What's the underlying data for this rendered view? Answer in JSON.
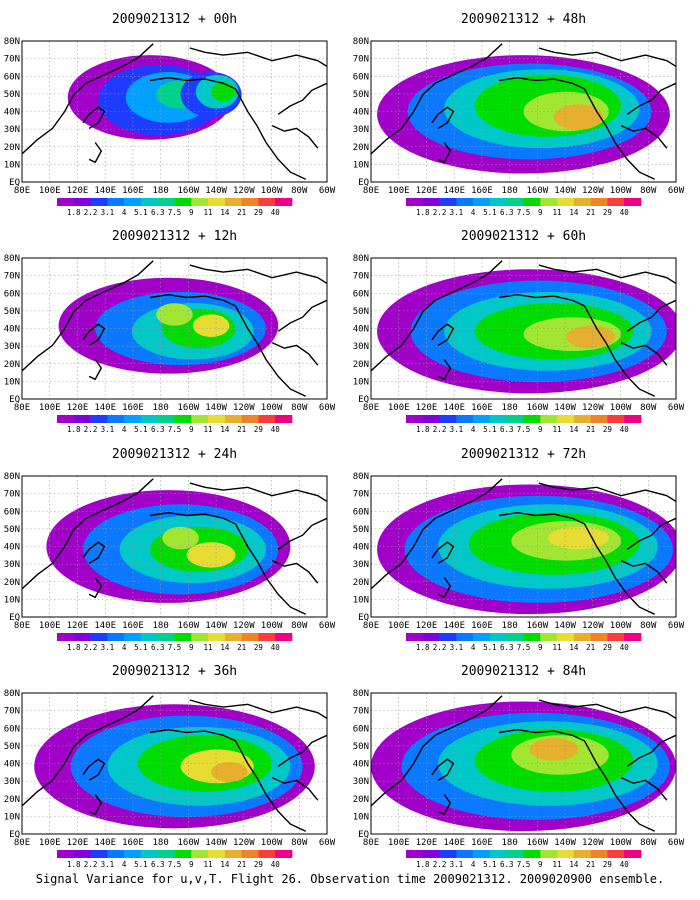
{
  "colorbar": {
    "labels": [
      "1.8",
      "2.2",
      "3.1",
      "4",
      "5.1",
      "6.3",
      "7.5",
      "9",
      "11",
      "14",
      "21",
      "29",
      "40"
    ],
    "colors": [
      "#a000c8",
      "#8200dc",
      "#1e3cff",
      "#0a78ff",
      "#00a0ff",
      "#00c8c8",
      "#00d28c",
      "#00dc00",
      "#a0e632",
      "#e6dc32",
      "#e6af2d",
      "#f08228",
      "#fa3c3c",
      "#f00082"
    ]
  },
  "axis": {
    "lon_ticks": [
      "80E",
      "100E",
      "120E",
      "140E",
      "160E",
      "180",
      "160W",
      "140W",
      "120W",
      "100W",
      "80W",
      "60W"
    ],
    "lat_ticks": [
      "80N",
      "70N",
      "60N",
      "50N",
      "40N",
      "30N",
      "20N",
      "10N",
      "EQ"
    ]
  },
  "panels": [
    {
      "title": "2009021312 + 00h"
    },
    {
      "title": "2009021312 + 48h"
    },
    {
      "title": "2009021312 + 12h"
    },
    {
      "title": "2009021312 + 60h"
    },
    {
      "title": "2009021312 + 24h"
    },
    {
      "title": "2009021312 + 72h"
    },
    {
      "title": "2009021312 + 36h"
    },
    {
      "title": "2009021312 + 84h"
    }
  ],
  "footer": "Signal Variance for u,v,T. Flight 26. Observation time 2009021312. 2009020900 ensemble."
}
